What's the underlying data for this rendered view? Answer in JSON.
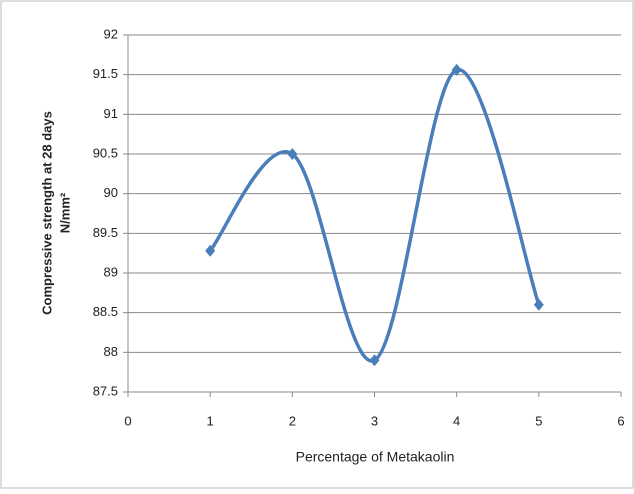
{
  "chart_data": {
    "type": "scatter_smooth",
    "x_label": "Percentage of  Metakaolin",
    "y_label": [
      "Compressive strength at 28 days",
      "N/mm²"
    ],
    "x": [
      1,
      2,
      3,
      4,
      5
    ],
    "series": [
      {
        "color": "#4a7ebb",
        "values": [
          89.28,
          90.5,
          87.9,
          91.56,
          88.6
        ]
      }
    ],
    "xlim": [
      0,
      6
    ],
    "xticks": [
      0,
      1,
      2,
      3,
      4,
      5,
      6
    ],
    "ylim": [
      87.5,
      92
    ],
    "yticks": [
      87.5,
      88,
      88.5,
      89,
      89.5,
      90,
      90.5,
      91,
      91.5,
      92
    ],
    "grid": true
  }
}
